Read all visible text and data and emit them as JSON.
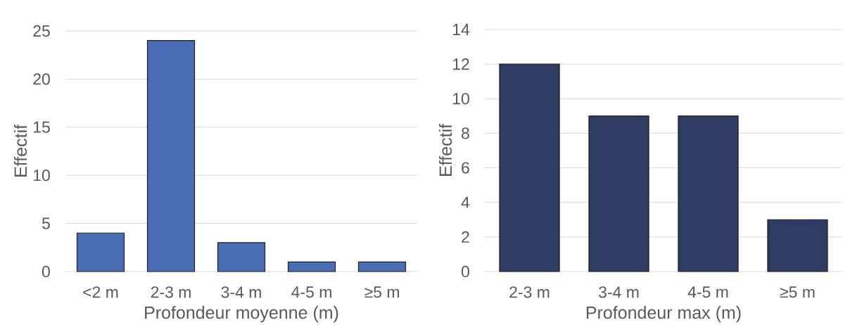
{
  "chart_data": [
    {
      "type": "bar",
      "xlabel": "Profondeur moyenne (m)",
      "ylabel": "Effectif",
      "categories": [
        "<2 m",
        "2-3 m",
        "3-4 m",
        "4-5 m",
        "≥5 m"
      ],
      "values": [
        4,
        24,
        3,
        1,
        1
      ],
      "color": "#4a6eb5",
      "ylim": [
        0,
        25
      ],
      "yticks": [
        0,
        5,
        10,
        15,
        20,
        25
      ],
      "grid": "y"
    },
    {
      "type": "bar",
      "xlabel": "Profondeur max (m)",
      "ylabel": "Effectif",
      "categories": [
        "2-3 m",
        "3-4 m",
        "4-5 m",
        "≥5 m"
      ],
      "values": [
        12,
        9,
        9,
        3
      ],
      "color": "#2e3b62",
      "ylim": [
        0,
        14
      ],
      "yticks": [
        0,
        2,
        4,
        6,
        8,
        10,
        12,
        14
      ],
      "grid": "y"
    }
  ]
}
